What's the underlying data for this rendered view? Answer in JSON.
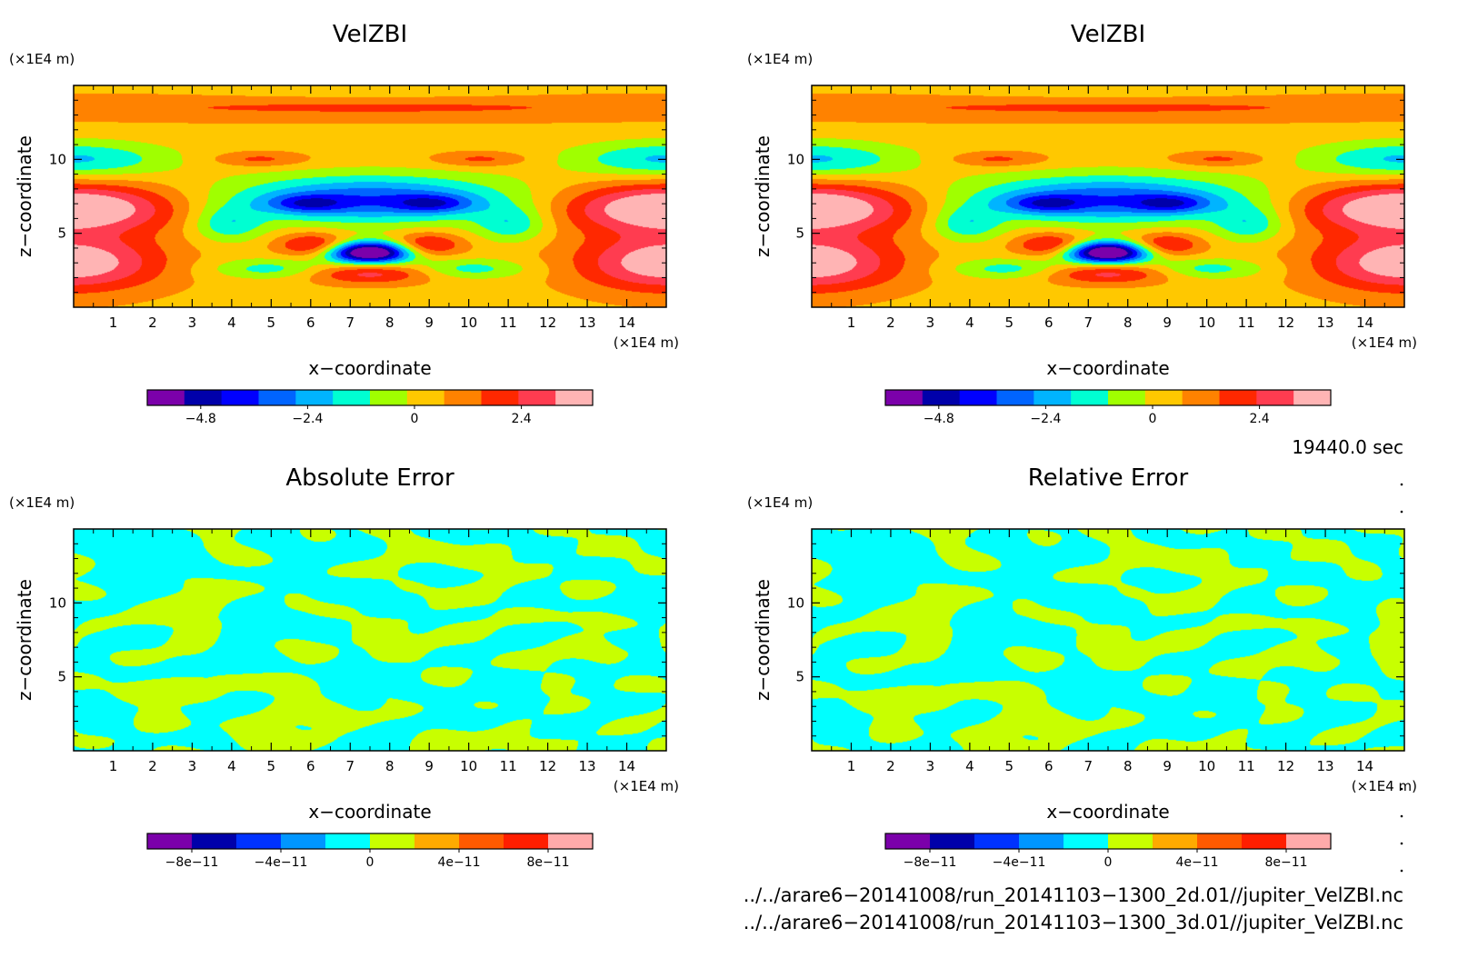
{
  "chart_data": [
    {
      "type": "heatmap",
      "title": "VelZBI",
      "field": "velzbi",
      "xlabel": "x−coordinate",
      "ylabel": "z−coordinate",
      "x_unit_label": "(×1E4 m)",
      "y_unit_label": "(×1E4 m)",
      "xlim": [
        0,
        15
      ],
      "ylim": [
        0,
        15
      ],
      "x_ticks": [
        "1",
        "2",
        "3",
        "4",
        "5",
        "6",
        "7",
        "8",
        "9",
        "10",
        "11",
        "12",
        "13",
        "14"
      ],
      "y_ticks": [
        "5",
        "10"
      ],
      "colorbar": {
        "levels": 12,
        "range": [
          -6,
          4
        ],
        "colors": [
          "#7b00aa",
          "#0000aa",
          "#0000ff",
          "#0064ff",
          "#00b4ff",
          "#00ffd2",
          "#a0ff00",
          "#ffc800",
          "#ff8200",
          "#ff2800",
          "#ff3c50",
          "#ffb4b4"
        ],
        "tick_labels": [
          "−4.8",
          "−2.4",
          "0",
          "2.4"
        ],
        "tick_values": [
          -4.8,
          -2.4,
          0,
          2.4
        ]
      }
    },
    {
      "type": "heatmap",
      "title": "VelZBI",
      "field": "velzbi",
      "xlabel": "x−coordinate",
      "ylabel": "z−coordinate",
      "x_unit_label": "(×1E4 m)",
      "y_unit_label": "(×1E4 m)",
      "xlim": [
        0,
        15
      ],
      "ylim": [
        0,
        15
      ],
      "x_ticks": [
        "1",
        "2",
        "3",
        "4",
        "5",
        "6",
        "7",
        "8",
        "9",
        "10",
        "11",
        "12",
        "13",
        "14"
      ],
      "y_ticks": [
        "5",
        "10"
      ],
      "colorbar": {
        "levels": 12,
        "range": [
          -6,
          4
        ],
        "colors": [
          "#7b00aa",
          "#0000aa",
          "#0000ff",
          "#0064ff",
          "#00b4ff",
          "#00ffd2",
          "#a0ff00",
          "#ffc800",
          "#ff8200",
          "#ff2800",
          "#ff3c50",
          "#ffb4b4"
        ],
        "tick_labels": [
          "−4.8",
          "−2.4",
          "0",
          "2.4"
        ],
        "tick_values": [
          -4.8,
          -2.4,
          0,
          2.4
        ]
      }
    },
    {
      "type": "heatmap",
      "title": "Absolute Error",
      "field": "noise",
      "xlabel": "x−coordinate",
      "ylabel": "z−coordinate",
      "x_unit_label": "(×1E4 m)",
      "y_unit_label": "(×1E4 m)",
      "xlim": [
        0,
        15
      ],
      "ylim": [
        0,
        15
      ],
      "x_ticks": [
        "1",
        "2",
        "3",
        "4",
        "5",
        "6",
        "7",
        "8",
        "9",
        "10",
        "11",
        "12",
        "13",
        "14"
      ],
      "y_ticks": [
        "5",
        "10"
      ],
      "colorbar": {
        "levels": 10,
        "range": [
          -1e-10,
          1e-10
        ],
        "colors": [
          "#7b00aa",
          "#0000aa",
          "#0032ff",
          "#0096ff",
          "#00ffff",
          "#c8ff00",
          "#ffaa00",
          "#ff5a00",
          "#ff1e00",
          "#ffaaaa"
        ],
        "tick_labels": [
          "−8e−11",
          "−4e−11",
          "0",
          "4e−11",
          "8e−11"
        ],
        "tick_values": [
          -8e-11,
          -4e-11,
          0,
          4e-11,
          8e-11
        ]
      }
    },
    {
      "type": "heatmap",
      "title": "Relative Error",
      "field": "noise",
      "xlabel": "x−coordinate",
      "ylabel": "z−coordinate",
      "x_unit_label": "(×1E4 m)",
      "y_unit_label": "(×1E4 m)",
      "xlim": [
        0,
        15
      ],
      "ylim": [
        0,
        15
      ],
      "x_ticks": [
        "1",
        "2",
        "3",
        "4",
        "5",
        "6",
        "7",
        "8",
        "9",
        "10",
        "11",
        "12",
        "13",
        "14"
      ],
      "y_ticks": [
        "5",
        "10"
      ],
      "colorbar": {
        "levels": 10,
        "range": [
          -1e-10,
          1e-10
        ],
        "colors": [
          "#7b00aa",
          "#0000aa",
          "#0032ff",
          "#0096ff",
          "#00ffff",
          "#c8ff00",
          "#ffaa00",
          "#ff5a00",
          "#ff1e00",
          "#ffaaaa"
        ],
        "tick_labels": [
          "−8e−11",
          "−4e−11",
          "0",
          "4e−11",
          "8e−11"
        ],
        "tick_values": [
          -8e-11,
          -4e-11,
          0,
          4e-11,
          8e-11
        ]
      }
    }
  ],
  "annotations": {
    "time": "19440.0 sec",
    "file_paths": [
      "../../arare6−20141008/run_20141103−1300_2d.01//jupiter_VelZBI.nc",
      "../../arare6−20141008/run_20141103−1300_3d.01//jupiter_VelZBI.nc"
    ]
  }
}
